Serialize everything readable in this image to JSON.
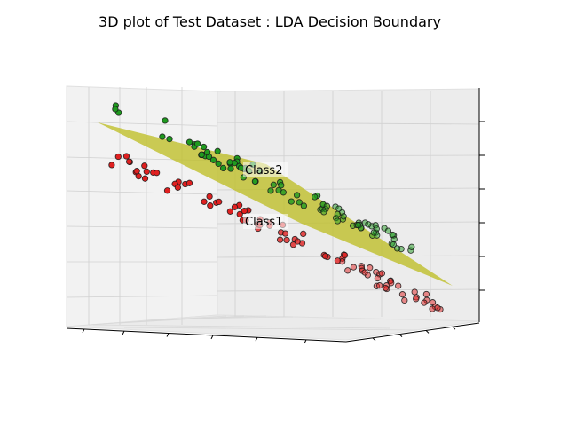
{
  "chart_data": {
    "type": "scatter",
    "projection": "3d",
    "title": "3D plot of Test Dataset : LDA Decision Boundary",
    "xlabel": "",
    "ylabel": "",
    "zlabel": "",
    "tick_labels_shown": false,
    "grid": true,
    "legend": "none",
    "decision_boundary": {
      "type": "plane",
      "color": "#bfbf2a"
    },
    "annotations": [
      {
        "text": "Class2",
        "series": "Class2"
      },
      {
        "text": "Class1",
        "series": "Class1"
      }
    ],
    "series": [
      {
        "label": "Class2",
        "color": "#1f9a1f",
        "count": 90
      },
      {
        "label": "Class1",
        "color": "#e02020",
        "count": 90
      }
    ]
  }
}
